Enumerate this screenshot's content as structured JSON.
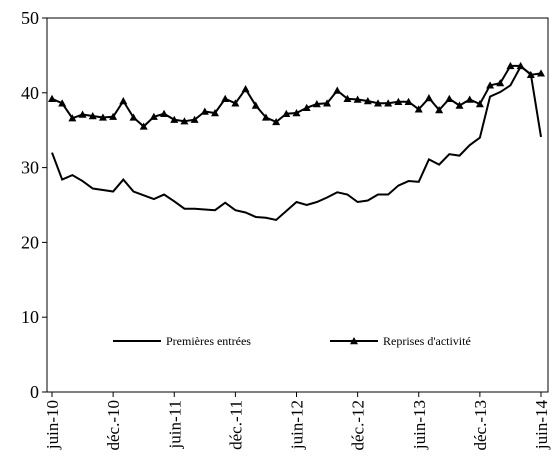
{
  "chart_data": {
    "type": "line",
    "categories": [
      "juin-10",
      null,
      null,
      null,
      null,
      null,
      "déc.-10",
      null,
      null,
      null,
      null,
      null,
      "juin-11",
      null,
      null,
      null,
      null,
      null,
      "déc.-11",
      null,
      null,
      null,
      null,
      null,
      "juin-12",
      null,
      null,
      null,
      null,
      null,
      "déc.-12",
      null,
      null,
      null,
      null,
      null,
      "juin-13",
      null,
      null,
      null,
      null,
      null,
      "déc.-13",
      null,
      null,
      null,
      null,
      null,
      "juin-14"
    ],
    "series": [
      {
        "name": "Premières entrées",
        "color": "#000000",
        "marker": "none",
        "values": [
          32,
          28.4,
          29,
          28.2,
          27.2,
          27,
          26.8,
          28.4,
          26.8,
          26.3,
          25.8,
          26.4,
          25.5,
          24.5,
          24.5,
          24.4,
          24.3,
          25.3,
          24.3,
          24.0,
          23.4,
          23.3,
          23.0,
          24.2,
          25.4,
          25.0,
          25.4,
          26.0,
          26.7,
          26.4,
          25.4,
          25.6,
          26.4,
          26.4,
          27.6,
          28.2,
          28.1,
          31.1,
          30.4,
          31.8,
          31.6,
          33.0,
          34.0,
          39.5,
          40.1,
          41.0,
          43.5,
          42.5,
          34.1
        ]
      },
      {
        "name": "Reprises d'activité",
        "color": "#000000",
        "marker": "triangle",
        "values": [
          39.2,
          38.6,
          36.6,
          37.1,
          36.9,
          36.7,
          36.8,
          38.9,
          36.7,
          35.5,
          36.8,
          37.2,
          36.4,
          36.2,
          36.4,
          37.5,
          37.3,
          39.2,
          38.6,
          40.5,
          38.3,
          36.7,
          36.1,
          37.2,
          37.3,
          38.0,
          38.5,
          38.6,
          40.3,
          39.2,
          39.1,
          38.9,
          38.6,
          38.6,
          38.8,
          38.8,
          37.8,
          39.3,
          37.7,
          39.2,
          38.3,
          39.1,
          38.5,
          41.0,
          41.3,
          43.6,
          43.6,
          42.4,
          42.6
        ]
      }
    ],
    "ylim": [
      0,
      50
    ],
    "yticks": [
      0,
      10,
      20,
      30,
      40,
      50
    ],
    "grid": false,
    "legend": "lower center"
  }
}
